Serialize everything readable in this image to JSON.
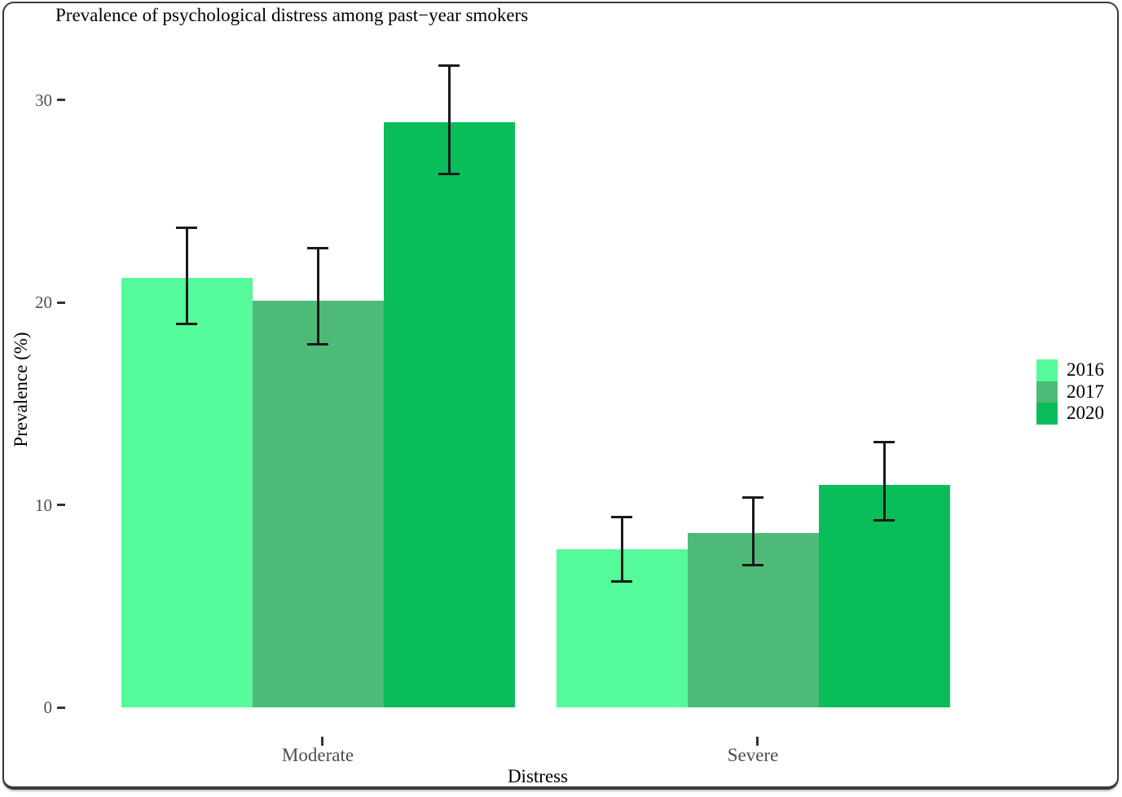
{
  "frame": {
    "border_color": "#3a3a3a",
    "background": "#ffffff"
  },
  "chart_data": {
    "type": "bar",
    "title": "Prevalence of psychological distress among past−year smokers",
    "xlabel": "Distress",
    "ylabel": "Prevalence (%)",
    "categories": [
      "Moderate",
      "Severe"
    ],
    "series": [
      {
        "name": "2016",
        "color": "#55FA9B",
        "values": [
          21.2,
          7.8
        ],
        "ci_low": [
          18.9,
          6.2
        ],
        "ci_high": [
          23.7,
          9.4
        ]
      },
      {
        "name": "2017",
        "color": "#4DBB77",
        "values": [
          20.1,
          8.6
        ],
        "ci_low": [
          17.9,
          7.0
        ],
        "ci_high": [
          22.7,
          10.4
        ]
      },
      {
        "name": "2020",
        "color": "#0ABD5B",
        "values": [
          28.9,
          11.0
        ],
        "ci_low": [
          26.3,
          9.2
        ],
        "ci_high": [
          31.7,
          13.1
        ]
      }
    ],
    "yticks": [
      0,
      10,
      20,
      30
    ],
    "ylim": [
      0,
      32.5
    ],
    "grid": false,
    "error_bars": true,
    "error_bar_color": "#1a1a1a",
    "legend": {
      "position": "right",
      "entries": [
        "2016",
        "2017",
        "2020"
      ]
    },
    "text_color": "#000000",
    "tick_label_color": "#4d4d4d"
  }
}
